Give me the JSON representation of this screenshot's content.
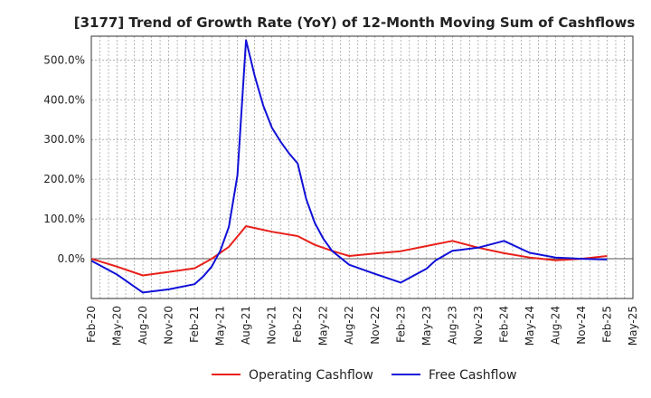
{
  "chart_data": {
    "type": "line",
    "title": "[3177]  Trend of Growth Rate (YoY) of 12-Month Moving Sum of Cashflows",
    "xlabel": "",
    "ylabel": "",
    "ylim": [
      -100,
      560
    ],
    "yticks": [
      0,
      100,
      200,
      300,
      400,
      500
    ],
    "ytick_labels": [
      "0.0%",
      "100.0%",
      "200.0%",
      "300.0%",
      "400.0%",
      "500.0%"
    ],
    "x_tick_labels": [
      "Feb-20",
      "May-20",
      "Aug-20",
      "Nov-20",
      "Feb-21",
      "May-21",
      "Aug-21",
      "Nov-21",
      "Feb-22",
      "May-22",
      "Aug-22",
      "Nov-22",
      "Feb-23",
      "May-23",
      "Aug-23",
      "Nov-23",
      "Feb-24",
      "May-24",
      "Aug-24",
      "Nov-24",
      "Feb-25",
      "May-25"
    ],
    "x_range_months": [
      0,
      63
    ],
    "grid": true,
    "legend_position": "bottom",
    "series": [
      {
        "name": "Operating Cashflow",
        "color": "#e8201a",
        "points": [
          [
            0,
            0
          ],
          [
            3,
            -20
          ],
          [
            6,
            -42
          ],
          [
            9,
            -33
          ],
          [
            12,
            -24
          ],
          [
            14,
            0
          ],
          [
            16,
            30
          ],
          [
            18,
            82
          ],
          [
            21,
            68
          ],
          [
            24,
            57
          ],
          [
            26,
            35
          ],
          [
            28,
            20
          ],
          [
            30,
            7
          ],
          [
            33,
            13
          ],
          [
            36,
            19
          ],
          [
            39,
            32
          ],
          [
            42,
            45
          ],
          [
            45,
            28
          ],
          [
            48,
            14
          ],
          [
            51,
            3
          ],
          [
            54,
            -4
          ],
          [
            57,
            0
          ],
          [
            60,
            7
          ]
        ]
      },
      {
        "name": "Free Cashflow",
        "color": "#1010d8",
        "points": [
          [
            0,
            -5
          ],
          [
            3,
            -40
          ],
          [
            6,
            -85
          ],
          [
            9,
            -77
          ],
          [
            12,
            -64
          ],
          [
            13,
            -45
          ],
          [
            14,
            -20
          ],
          [
            15,
            20
          ],
          [
            16,
            80
          ],
          [
            17,
            210
          ],
          [
            18,
            550
          ],
          [
            19,
            460
          ],
          [
            20,
            385
          ],
          [
            21,
            330
          ],
          [
            22,
            295
          ],
          [
            23,
            265
          ],
          [
            24,
            240
          ],
          [
            25,
            150
          ],
          [
            26,
            90
          ],
          [
            27,
            50
          ],
          [
            28,
            20
          ],
          [
            30,
            -15
          ],
          [
            33,
            -38
          ],
          [
            36,
            -60
          ],
          [
            39,
            -25
          ],
          [
            40,
            -5
          ],
          [
            42,
            20
          ],
          [
            45,
            28
          ],
          [
            48,
            45
          ],
          [
            50,
            25
          ],
          [
            51,
            15
          ],
          [
            54,
            3
          ],
          [
            57,
            0
          ],
          [
            60,
            -2
          ]
        ]
      }
    ]
  }
}
